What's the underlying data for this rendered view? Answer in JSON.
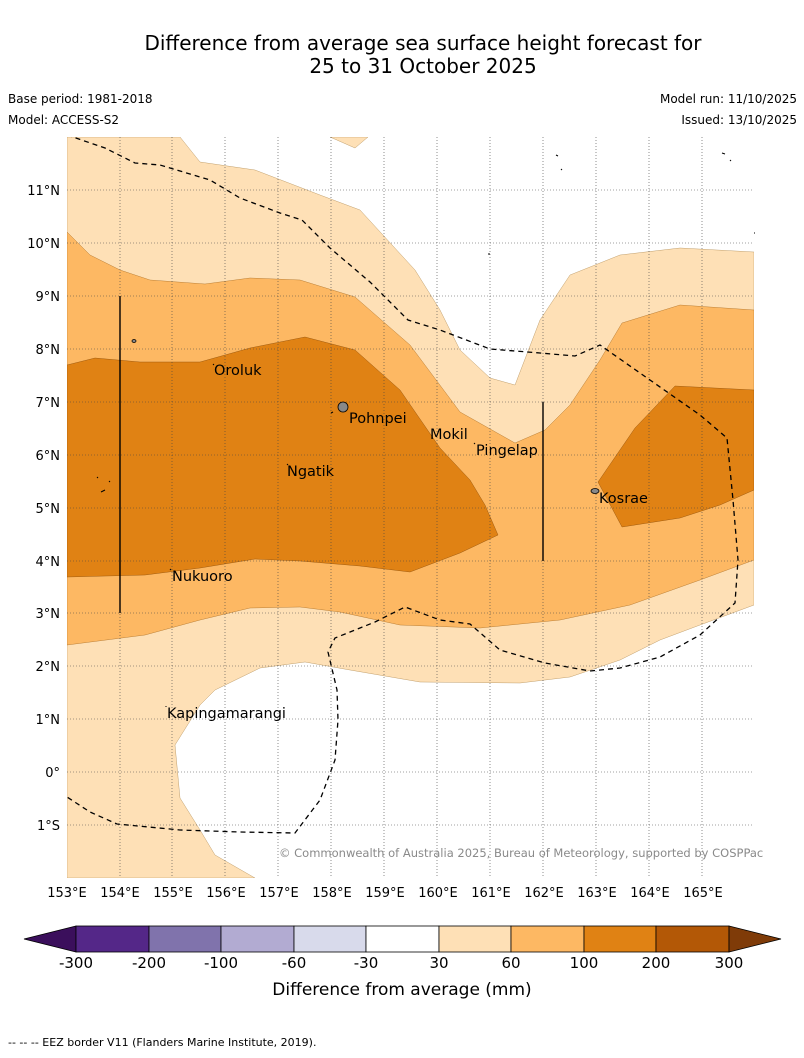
{
  "title": {
    "line1": "Difference from average sea surface height forecast for",
    "line2": "25 to 31 October 2025"
  },
  "meta": {
    "base_period": "Base period: 1981-2018",
    "model": "Model: ACCESS-S2",
    "model_run": "Model run: 11/10/2025",
    "issued": "Issued: 13/10/2025"
  },
  "map": {
    "lat_labels": [
      "11°N",
      "10°N",
      "9°N",
      "8°N",
      "7°N",
      "6°N",
      "5°N",
      "4°N",
      "3°N",
      "2°N",
      "1°N",
      "0°",
      "1°S"
    ],
    "lon_labels": [
      "153°E",
      "154°E",
      "155°E",
      "156°E",
      "157°E",
      "158°E",
      "159°E",
      "160°E",
      "161°E",
      "162°E",
      "163°E",
      "164°E",
      "165°E"
    ],
    "places": [
      "Oroluk",
      "Pohnpei",
      "Mokil",
      "Pingelap",
      "Ngatik",
      "Kosrae",
      "Nukuoro",
      "Kapingamarangi"
    ],
    "copyright": "© Commonwealth of Australia 2025, Bureau of Meteorology, supported by COSPPac"
  },
  "colorbar": {
    "ticks": [
      "-300",
      "-200",
      "-100",
      "-60",
      "-30",
      "30",
      "60",
      "100",
      "200",
      "300"
    ],
    "label": "Difference from average (mm)",
    "colors": [
      "#3b0f5c",
      "#542788",
      "#8073ac",
      "#b2abd2",
      "#d8daeb",
      "#ffffff",
      "#fee0b6",
      "#fdb863",
      "#e08214",
      "#b35806",
      "#7f3b08"
    ]
  },
  "footer": "-- -- -- EEZ border V11 (Flanders Marine Institute, 2019)."
}
